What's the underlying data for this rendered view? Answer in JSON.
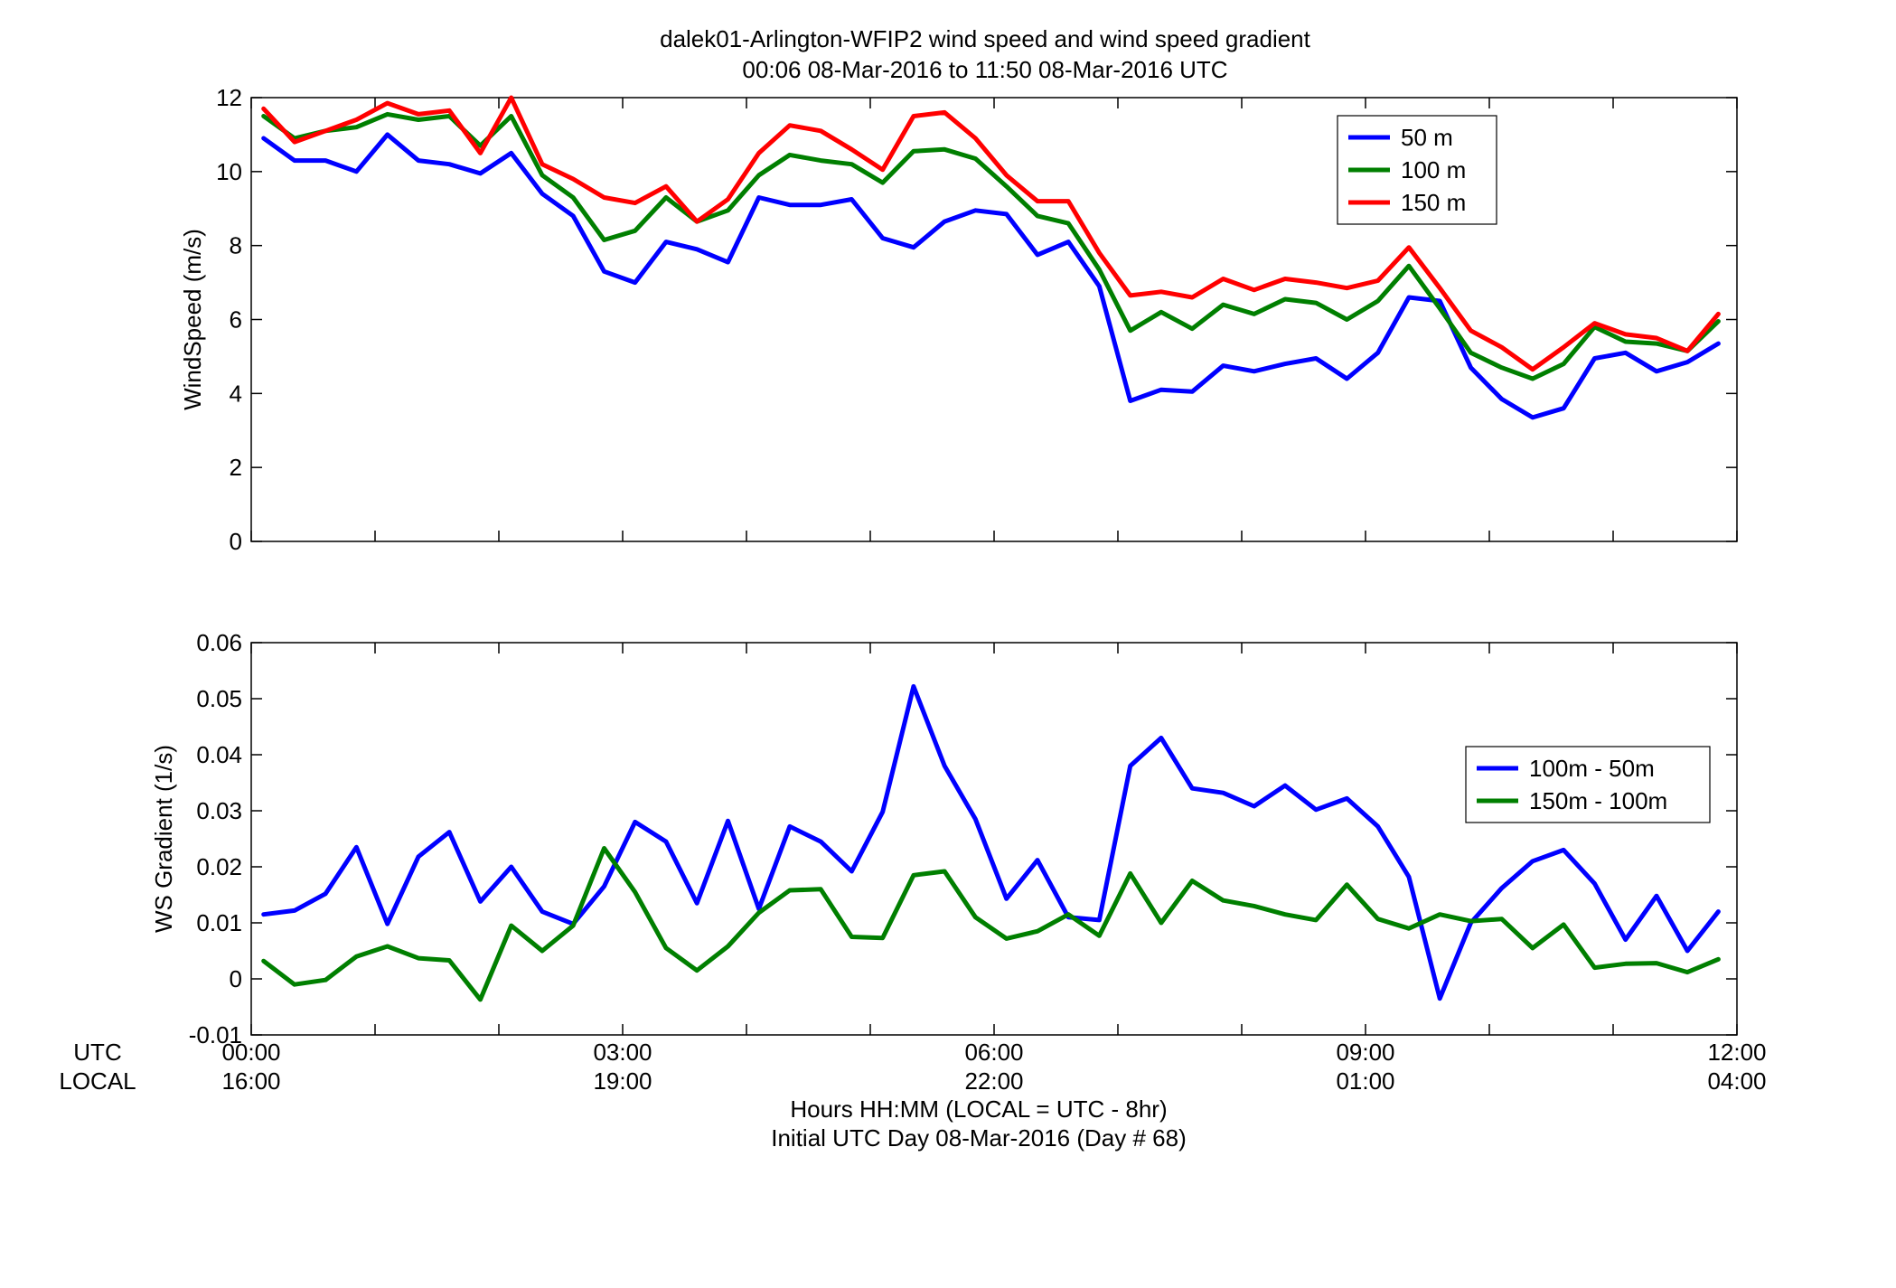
{
  "figure": {
    "title_line1": "dalek01-Arlington-WFIP2  wind speed and wind speed gradient",
    "title_line2": "00:06 08-Mar-2016 to 11:50 08-Mar-2016  UTC",
    "row_label_utc": "UTC",
    "row_label_local": "LOCAL",
    "xlabel_line1": "Hours HH:MM  (LOCAL = UTC - 8hr)",
    "xlabel_line2": "Initial UTC Day 08-Mar-2016 (Day # 68)",
    "x_ticks": [
      {
        "x": 0,
        "utc": "00:00",
        "local": "16:00"
      },
      {
        "x": 3,
        "utc": "03:00",
        "local": "19:00"
      },
      {
        "x": 6,
        "utc": "06:00",
        "local": "22:00"
      },
      {
        "x": 9,
        "utc": "09:00",
        "local": "01:00"
      },
      {
        "x": 12,
        "utc": "12:00",
        "local": "04:00"
      }
    ]
  },
  "chart_data": [
    {
      "type": "line",
      "ylabel": "WindSpeed (m/s)",
      "xlim": [
        0,
        12
      ],
      "ylim": [
        0,
        12
      ],
      "yticks": [
        0,
        2,
        4,
        6,
        8,
        10,
        12
      ],
      "ytick_labels": [
        "0",
        "2",
        "4",
        "6",
        "8",
        "10",
        "12"
      ],
      "legend_position": "top-right",
      "x": [
        0.1,
        0.35,
        0.6,
        0.85,
        1.1,
        1.35,
        1.6,
        1.85,
        2.1,
        2.35,
        2.6,
        2.85,
        3.1,
        3.35,
        3.6,
        3.85,
        4.1,
        4.35,
        4.6,
        4.85,
        5.1,
        5.35,
        5.6,
        5.85,
        6.1,
        6.35,
        6.6,
        6.85,
        7.1,
        7.35,
        7.6,
        7.85,
        8.1,
        8.35,
        8.6,
        8.85,
        9.1,
        9.35,
        9.6,
        9.85,
        10.1,
        10.35,
        10.6,
        10.85,
        11.1,
        11.35,
        11.6,
        11.85
      ],
      "series": [
        {
          "name": "50 m",
          "color": "#0000ff",
          "values": [
            10.9,
            10.3,
            10.3,
            10.0,
            11.0,
            10.3,
            10.2,
            9.95,
            10.5,
            9.4,
            8.8,
            7.3,
            7.0,
            8.1,
            7.9,
            7.55,
            9.3,
            9.1,
            9.1,
            9.25,
            8.2,
            7.95,
            8.65,
            8.95,
            8.85,
            7.75,
            8.1,
            6.9,
            3.8,
            4.1,
            4.05,
            4.75,
            4.6,
            4.8,
            4.95,
            4.4,
            5.1,
            6.6,
            6.5,
            4.7,
            3.85,
            3.35,
            3.6,
            4.95,
            5.1,
            4.6,
            4.85,
            5.35
          ]
        },
        {
          "name": "100 m",
          "color": "#007f00",
          "values": [
            11.5,
            10.9,
            11.1,
            11.2,
            11.55,
            11.4,
            11.5,
            10.7,
            11.5,
            9.9,
            9.3,
            8.15,
            8.4,
            9.3,
            8.65,
            8.95,
            9.9,
            10.45,
            10.3,
            10.2,
            9.7,
            10.55,
            10.6,
            10.35,
            9.6,
            8.8,
            8.6,
            7.35,
            5.7,
            6.2,
            5.75,
            6.4,
            6.15,
            6.55,
            6.45,
            6.0,
            6.5,
            7.45,
            6.3,
            5.1,
            4.7,
            4.4,
            4.8,
            5.8,
            5.4,
            5.35,
            5.15,
            5.95
          ]
        },
        {
          "name": "150 m",
          "color": "#ff0000",
          "values": [
            11.7,
            10.8,
            11.1,
            11.4,
            11.85,
            11.55,
            11.65,
            10.5,
            12.0,
            10.2,
            9.8,
            9.3,
            9.15,
            9.6,
            8.65,
            9.25,
            10.5,
            11.25,
            11.1,
            10.6,
            10.05,
            11.5,
            11.6,
            10.9,
            9.9,
            9.2,
            9.2,
            7.8,
            6.65,
            6.75,
            6.6,
            7.1,
            6.8,
            7.1,
            7.0,
            6.85,
            7.05,
            7.95,
            6.85,
            5.7,
            5.25,
            4.65,
            5.25,
            5.9,
            5.6,
            5.5,
            5.15,
            6.15
          ]
        }
      ]
    },
    {
      "type": "line",
      "ylabel": "WS Gradient (1/s)",
      "xlim": [
        0,
        12
      ],
      "ylim": [
        -0.01,
        0.06
      ],
      "yticks": [
        -0.01,
        0,
        0.01,
        0.02,
        0.03,
        0.04,
        0.05,
        0.06
      ],
      "ytick_labels": [
        "-0.01",
        "0",
        "0.01",
        "0.02",
        "0.03",
        "0.04",
        "0.05",
        "0.06"
      ],
      "legend_position": "right",
      "x": [
        0.1,
        0.35,
        0.6,
        0.85,
        1.1,
        1.35,
        1.6,
        1.85,
        2.1,
        2.35,
        2.6,
        2.85,
        3.1,
        3.35,
        3.6,
        3.85,
        4.1,
        4.35,
        4.6,
        4.85,
        5.1,
        5.35,
        5.6,
        5.85,
        6.1,
        6.35,
        6.6,
        6.85,
        7.1,
        7.35,
        7.6,
        7.85,
        8.1,
        8.35,
        8.6,
        8.85,
        9.1,
        9.35,
        9.6,
        9.85,
        10.1,
        10.35,
        10.6,
        10.85,
        11.1,
        11.35,
        11.6,
        11.85
      ],
      "series": [
        {
          "name": "100m - 50m",
          "color": "#0000ff",
          "values": [
            0.0115,
            0.0122,
            0.0152,
            0.0235,
            0.0098,
            0.0218,
            0.0262,
            0.0138,
            0.02,
            0.012,
            0.0098,
            0.0165,
            0.028,
            0.0245,
            0.0135,
            0.0282,
            0.0125,
            0.0272,
            0.0245,
            0.0192,
            0.0298,
            0.0522,
            0.038,
            0.0285,
            0.0143,
            0.0212,
            0.011,
            0.0105,
            0.038,
            0.043,
            0.034,
            0.0332,
            0.0308,
            0.0345,
            0.0302,
            0.0322,
            0.0272,
            0.0182,
            -0.0035,
            0.01,
            0.0162,
            0.021,
            0.023,
            0.017,
            0.007,
            0.0148,
            0.005,
            0.012
          ]
        },
        {
          "name": "150m - 100m",
          "color": "#007f00",
          "values": [
            0.0032,
            -0.001,
            -0.0002,
            0.004,
            0.0058,
            0.0037,
            0.0033,
            -0.0037,
            0.0095,
            0.005,
            0.0095,
            0.0233,
            0.0155,
            0.0055,
            0.0015,
            0.0058,
            0.0118,
            0.0158,
            0.016,
            0.0075,
            0.0073,
            0.0185,
            0.0192,
            0.011,
            0.0072,
            0.0085,
            0.0115,
            0.0077,
            0.0188,
            0.01,
            0.0175,
            0.014,
            0.013,
            0.0115,
            0.0105,
            0.0168,
            0.0107,
            0.009,
            0.0115,
            0.0103,
            0.0107,
            0.0055,
            0.0097,
            0.002,
            0.0027,
            0.0028,
            0.0012,
            0.0035
          ]
        }
      ]
    }
  ]
}
